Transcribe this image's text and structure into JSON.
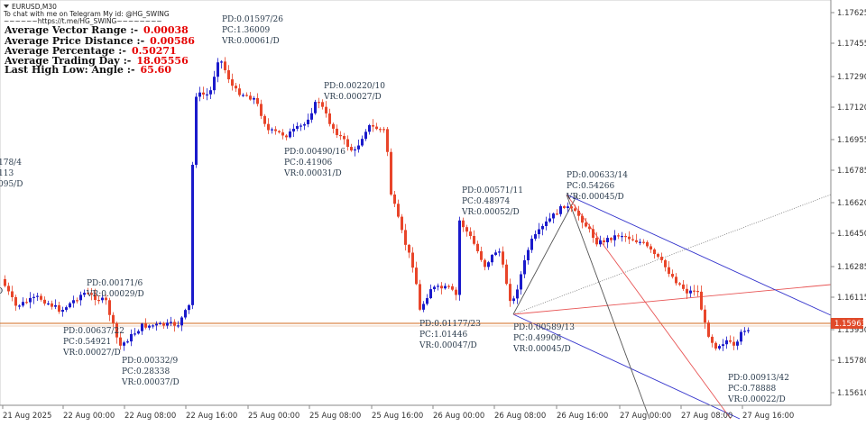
{
  "header": {
    "symbol_timeframe": "EURUSD,M30",
    "telegram_line": "To chat with me on Telegram My id: @HG_SWING",
    "telegram_link": "~~~~~~https://t.me/HG_SWING~~~~~~~~"
  },
  "stats": [
    {
      "label": "Average Vector Range",
      "sep": ":-",
      "value": "0.00038"
    },
    {
      "label": "Average Price Distance",
      "sep": ":-",
      "value": "0.00586"
    },
    {
      "label": "Average Percentage",
      "sep": ":-",
      "value": "0.50271"
    },
    {
      "label": "Average Trading Day",
      "sep": ":-",
      "value": "18.05556"
    },
    {
      "label": "Last High Low: Angle",
      "sep": ":-",
      "value": "65.60"
    }
  ],
  "price_axis": {
    "ticks": [
      "1.17625",
      "1.17455",
      "1.17290",
      "1.17120",
      "1.16955",
      "1.16785",
      "1.16620",
      "1.16450",
      "1.16285",
      "1.16115",
      "1.15950",
      "1.15780",
      "1.15610"
    ],
    "current_price": "1.15963"
  },
  "time_axis": {
    "ticks": [
      "21 Aug 2025",
      "22 Aug 00:00",
      "22 Aug 08:00",
      "22 Aug 16:00",
      "25 Aug 00:00",
      "25 Aug 08:00",
      "25 Aug 16:00",
      "26 Aug 00:00",
      "26 Aug 08:00",
      "26 Aug 16:00",
      "27 Aug 00:00",
      "27 Aug 08:00",
      "27 Aug 16:00"
    ]
  },
  "annotations": [
    {
      "lines": [
        "PD:0.01597/26",
        "PC:1.36009",
        "VR:0.00061/D"
      ]
    },
    {
      "lines": [
        "PD:0.00220/10",
        "VR:0.00027/D"
      ]
    },
    {
      "lines": [
        "PD:0.00490/16",
        "PC:0.41906",
        "VR:0.00031/D"
      ]
    },
    {
      "lines": [
        "PD:0.00571/11",
        "PC:0.48974",
        "VR:0.00052/D"
      ]
    },
    {
      "lines": [
        "PD:0.00633/14",
        "PC:0.54266",
        "VR:0.00045/D"
      ]
    },
    {
      "lines": [
        "PD:0.00171/6",
        "VR:0.00029/D"
      ]
    },
    {
      "lines": [
        "PD:0.00637/22",
        "PC:0.54921",
        "VR:0.00027/D"
      ]
    },
    {
      "lines": [
        "PD:0.00332/9",
        "PC:0.28338",
        "VR:0.00037/D"
      ]
    },
    {
      "lines": [
        "PD:0.01177/23",
        "PC:1.01446",
        "VR:0.00047/D"
      ]
    },
    {
      "lines": [
        "PD:0.00589/13",
        "PC:0.49906",
        "VR:0.00045/D"
      ]
    },
    {
      "lines": [
        "PD:0.00913/42",
        "PC:0.78888",
        "VR:0.00022/D"
      ]
    },
    {
      "lines": [
        "178/4",
        "113",
        "095/D"
      ]
    },
    {
      "lines": [
        "D"
      ]
    }
  ],
  "colors": {
    "bull": "#1a1acb",
    "bear": "#e8452a",
    "text": "#2a3b4c",
    "value_red": "#e60000",
    "price_line": "#d2691e",
    "fan_blue": "#3333cc",
    "fan_red": "#e85555",
    "fan_gray": "#555555"
  }
}
